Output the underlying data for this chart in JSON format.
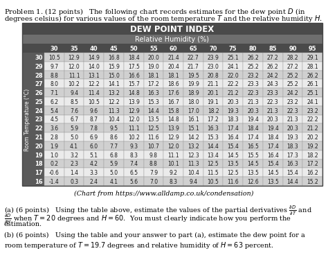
{
  "title": "DEW POINT INDEX",
  "subtitle": "Relative Humidity (%)",
  "col_headers": [
    "30",
    "35",
    "40",
    "45",
    "50",
    "55",
    "60",
    "65",
    "70",
    "75",
    "80",
    "85",
    "90",
    "95"
  ],
  "row_headers": [
    "30",
    "29",
    "28",
    "27",
    "26",
    "25",
    "24",
    "23",
    "22",
    "21",
    "20",
    "19",
    "18",
    "17",
    "16"
  ],
  "row_label": "Room Temperature (°C)",
  "table_data": [
    [
      "10.5",
      "12.9",
      "14.9",
      "16.8",
      "18.4",
      "20.0",
      "21.4",
      "22.7",
      "23.9",
      "25.1",
      "26.2",
      "27.2",
      "28.2",
      "29.1"
    ],
    [
      "9.7",
      "12.0",
      "14.0",
      "15.9",
      "17.5",
      "19.0",
      "20.4",
      "21.7",
      "23.0",
      "24.1",
      "25.2",
      "26.2",
      "27.2",
      "28.1"
    ],
    [
      "8.8",
      "11.1",
      "13.1",
      "15.0",
      "16.6",
      "18.1",
      "18.1",
      "19.5",
      "20.8",
      "22.0",
      "23.2",
      "24.2",
      "25.2",
      "26.2"
    ],
    [
      "8.0",
      "10.2",
      "12.2",
      "14.1",
      "15.7",
      "17.2",
      "18.6",
      "19.9",
      "21.1",
      "22.2",
      "23.3",
      "24.3",
      "25.2",
      "26.1"
    ],
    [
      "7.1",
      "9.4",
      "11.4",
      "13.2",
      "14.8",
      "16.3",
      "17.6",
      "18.9",
      "20.1",
      "21.2",
      "22.3",
      "23.3",
      "24.2",
      "25.1"
    ],
    [
      "6.2",
      "8.5",
      "10.5",
      "12.2",
      "13.9",
      "15.3",
      "16.7",
      "18.0",
      "19.1",
      "20.3",
      "21.3",
      "22.3",
      "23.2",
      "24.1"
    ],
    [
      "5.4",
      "7.6",
      "9.6",
      "11.3",
      "12.9",
      "14.4",
      "15.8",
      "17.0",
      "18.2",
      "19.3",
      "20.3",
      "21.3",
      "22.3",
      "23.2"
    ],
    [
      "4.5",
      "6.7",
      "8.7",
      "10.4",
      "12.0",
      "13.5",
      "14.8",
      "16.1",
      "17.2",
      "18.3",
      "19.4",
      "20.3",
      "21.3",
      "22.2"
    ],
    [
      "3.6",
      "5.9",
      "7.8",
      "9.5",
      "11.1",
      "12.5",
      "13.9",
      "15.1",
      "16.3",
      "17.4",
      "18.4",
      "19.4",
      "20.3",
      "21.2"
    ],
    [
      "2.8",
      "5.0",
      "6.9",
      "8.6",
      "10.2",
      "11.6",
      "12.9",
      "14.2",
      "15.3",
      "16.4",
      "17.4",
      "18.4",
      "19.3",
      "20.2"
    ],
    [
      "1.9",
      "4.1",
      "6.0",
      "7.7",
      "9.3",
      "10.7",
      "12.0",
      "13.2",
      "14.4",
      "15.4",
      "16.5",
      "17.4",
      "18.3",
      "19.2"
    ],
    [
      "1.0",
      "3.2",
      "5.1",
      "6.8",
      "8.3",
      "9.8",
      "11.1",
      "12.3",
      "13.4",
      "14.5",
      "15.5",
      "16.4",
      "17.3",
      "18.2"
    ],
    [
      "0.2",
      "2.3",
      "4.2",
      "5.9",
      "7.4",
      "8.8",
      "10.1",
      "11.3",
      "12.5",
      "13.5",
      "14.5",
      "15.4",
      "16.3",
      "17.2"
    ],
    [
      "-0.6",
      "1.4",
      "3.3",
      "5.0",
      "6.5",
      "7.9",
      "9.2",
      "10.4",
      "11.5",
      "12.5",
      "13.5",
      "14.5",
      "15.4",
      "16.2"
    ],
    [
      "-1.4",
      "0.3",
      "2.4",
      "4.1",
      "5.6",
      "7.0",
      "8.3",
      "9.4",
      "10.5",
      "11.6",
      "12.6",
      "13.5",
      "14.4",
      "15.2"
    ]
  ],
  "caption": "(Chart from https://www.alldamp.co.uk/condensation)",
  "header_bg": "#4a4a4a",
  "subheader_bg": "#6e6e6e",
  "row_label_bg": "#5a5a5a",
  "row_num_bg": "#5a5a5a",
  "col_hdr_bg": "#4a4a4a",
  "odd_row_bg": "#d0d0d0",
  "even_row_bg": "#ebebeb",
  "header_fg": "#ffffff",
  "cell_fg": "#1a1a1a",
  "row_num_fg": "#ffffff"
}
